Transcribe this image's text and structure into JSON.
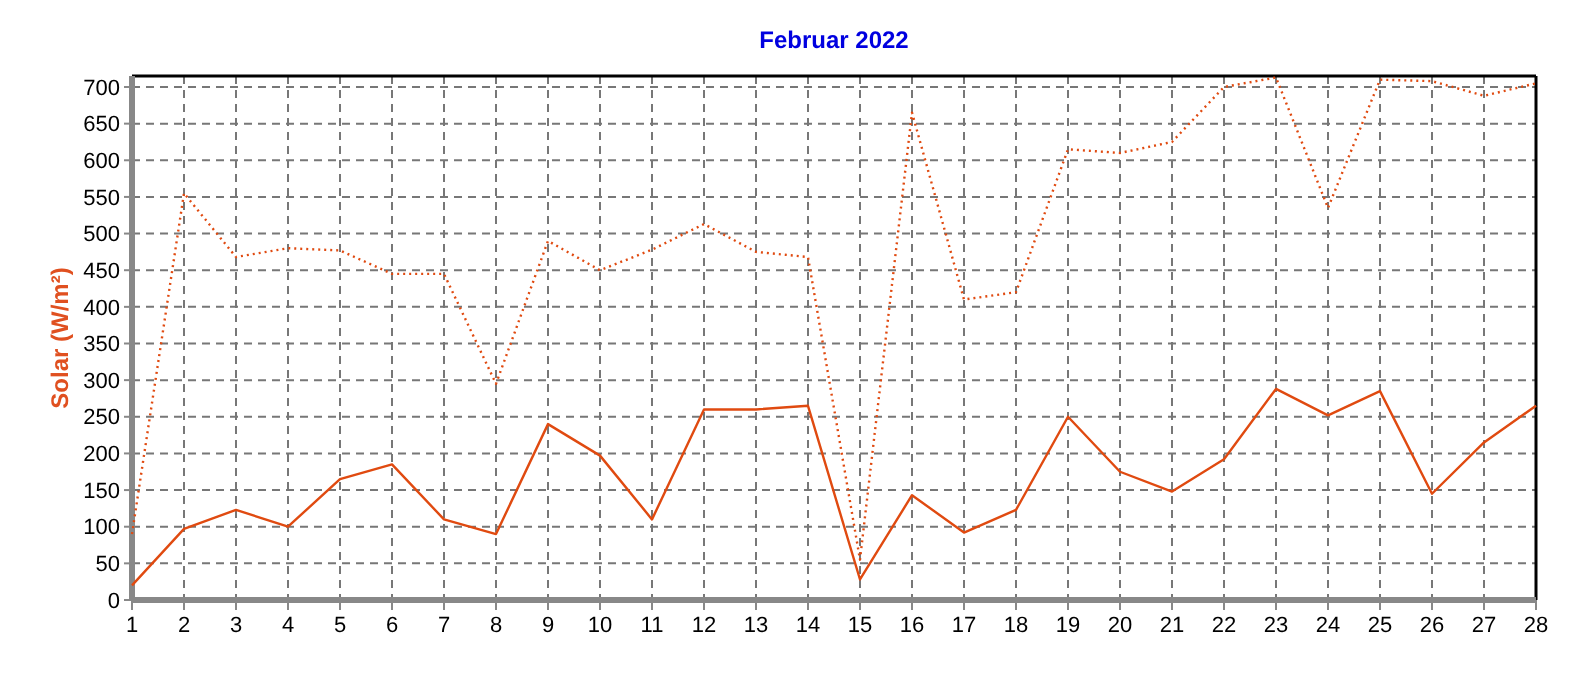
{
  "chart_data": {
    "type": "line",
    "title": "Februar 2022",
    "ylabel": "Solar (W/m²)",
    "x": [
      1,
      2,
      3,
      4,
      5,
      6,
      7,
      8,
      9,
      10,
      11,
      12,
      13,
      14,
      15,
      16,
      17,
      18,
      19,
      20,
      21,
      22,
      23,
      24,
      25,
      26,
      27,
      28
    ],
    "xlim": [
      1,
      28
    ],
    "xticks": [
      1,
      2,
      3,
      4,
      5,
      6,
      7,
      8,
      9,
      10,
      11,
      12,
      13,
      14,
      15,
      16,
      17,
      18,
      19,
      20,
      21,
      22,
      23,
      24,
      25,
      26,
      27,
      28
    ],
    "ylim": [
      0,
      715
    ],
    "yticks": [
      0,
      50,
      100,
      150,
      200,
      250,
      300,
      350,
      400,
      450,
      500,
      550,
      600,
      650,
      700
    ],
    "grid": true,
    "marker": "none",
    "series": [
      {
        "color": "#e04a10",
        "line_style": "dotted",
        "values": [
          90,
          555,
          468,
          480,
          477,
          445,
          445,
          295,
          490,
          450,
          478,
          513,
          475,
          468,
          55,
          665,
          410,
          420,
          615,
          610,
          625,
          700,
          713,
          535,
          710,
          708,
          688,
          705
        ]
      },
      {
        "color": "#e04a10",
        "line_style": "solid",
        "values": [
          20,
          97,
          123,
          100,
          165,
          185,
          110,
          90,
          240,
          197,
          110,
          260,
          260,
          265,
          28,
          143,
          92,
          123,
          250,
          175,
          148,
          192,
          288,
          252,
          285,
          145,
          215,
          265
        ]
      }
    ]
  }
}
